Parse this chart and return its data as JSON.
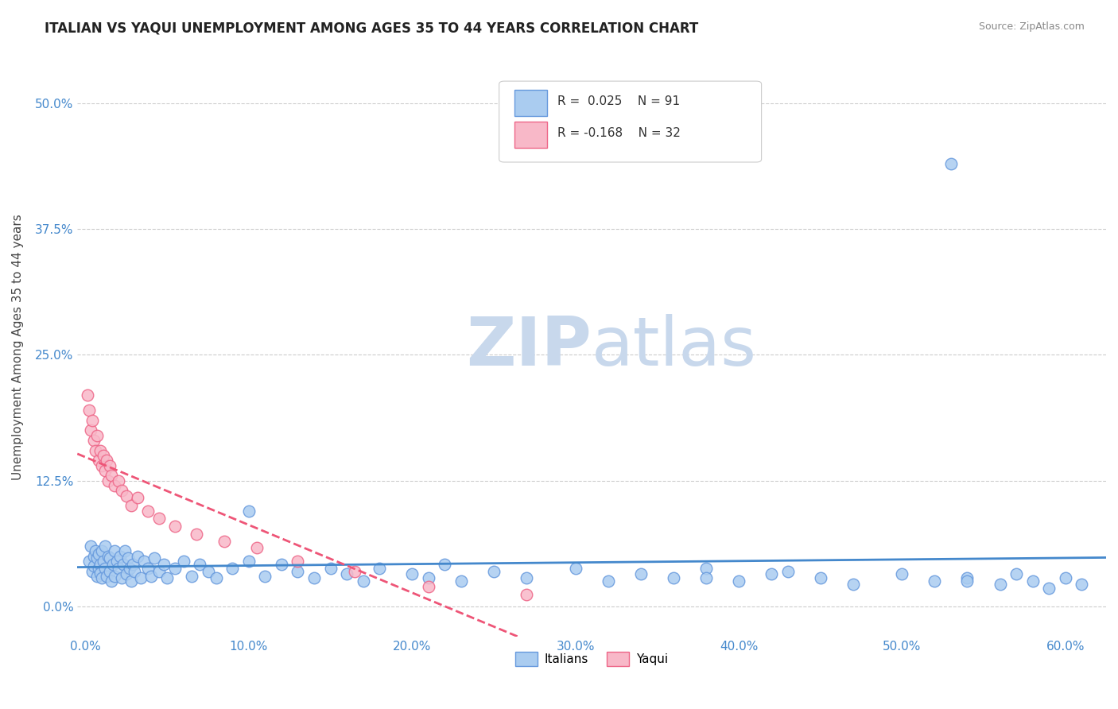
{
  "title": "ITALIAN VS YAQUI UNEMPLOYMENT AMONG AGES 35 TO 44 YEARS CORRELATION CHART",
  "source": "Source: ZipAtlas.com",
  "xlabel": "",
  "ylabel": "Unemployment Among Ages 35 to 44 years",
  "xlim": [
    -0.005,
    0.625
  ],
  "ylim": [
    -0.03,
    0.545
  ],
  "xticks": [
    0.0,
    0.1,
    0.2,
    0.3,
    0.4,
    0.5,
    0.6
  ],
  "xtick_labels": [
    "0.0%",
    "10.0%",
    "20.0%",
    "30.0%",
    "40.0%",
    "50.0%",
    "60.0%"
  ],
  "yticks": [
    0.0,
    0.125,
    0.25,
    0.375,
    0.5
  ],
  "ytick_labels": [
    "0.0%",
    "12.5%",
    "25.0%",
    "37.5%",
    "50.0%"
  ],
  "grid_color": "#cccccc",
  "background_color": "#ffffff",
  "italian_color": "#aaccf0",
  "italian_edge_color": "#6699dd",
  "yaqui_color": "#f8b8c8",
  "yaqui_edge_color": "#ee6688",
  "italian_R": 0.025,
  "italian_N": 91,
  "yaqui_R": -0.168,
  "yaqui_N": 32,
  "trend_italian_color": "#4488cc",
  "trend_yaqui_color": "#ee5577",
  "watermark_zip": "ZIP",
  "watermark_atlas": "atlas",
  "watermark_color": "#c8d8ec",
  "legend_label_italian": "Italians",
  "legend_label_yaqui": "Yaqui",
  "italian_x": [
    0.002,
    0.003,
    0.004,
    0.005,
    0.005,
    0.006,
    0.007,
    0.007,
    0.008,
    0.008,
    0.009,
    0.009,
    0.01,
    0.01,
    0.011,
    0.012,
    0.012,
    0.013,
    0.014,
    0.015,
    0.015,
    0.016,
    0.017,
    0.018,
    0.018,
    0.019,
    0.02,
    0.021,
    0.022,
    0.023,
    0.024,
    0.025,
    0.026,
    0.027,
    0.028,
    0.029,
    0.03,
    0.032,
    0.034,
    0.036,
    0.038,
    0.04,
    0.042,
    0.045,
    0.048,
    0.05,
    0.055,
    0.06,
    0.065,
    0.07,
    0.075,
    0.08,
    0.09,
    0.1,
    0.11,
    0.12,
    0.13,
    0.14,
    0.15,
    0.16,
    0.17,
    0.18,
    0.2,
    0.21,
    0.22,
    0.23,
    0.25,
    0.27,
    0.3,
    0.32,
    0.34,
    0.36,
    0.38,
    0.4,
    0.42,
    0.45,
    0.47,
    0.5,
    0.52,
    0.54,
    0.56,
    0.57,
    0.58,
    0.59,
    0.6,
    0.61,
    0.54,
    0.43,
    0.38,
    0.53,
    0.1
  ],
  "italian_y": [
    0.045,
    0.06,
    0.035,
    0.05,
    0.04,
    0.055,
    0.03,
    0.048,
    0.038,
    0.052,
    0.042,
    0.033,
    0.055,
    0.028,
    0.045,
    0.038,
    0.06,
    0.03,
    0.05,
    0.035,
    0.048,
    0.025,
    0.042,
    0.055,
    0.03,
    0.045,
    0.038,
    0.05,
    0.028,
    0.042,
    0.055,
    0.032,
    0.048,
    0.038,
    0.025,
    0.042,
    0.035,
    0.05,
    0.028,
    0.045,
    0.038,
    0.03,
    0.048,
    0.035,
    0.042,
    0.028,
    0.038,
    0.045,
    0.03,
    0.042,
    0.035,
    0.028,
    0.038,
    0.045,
    0.03,
    0.042,
    0.035,
    0.028,
    0.038,
    0.032,
    0.025,
    0.038,
    0.032,
    0.028,
    0.042,
    0.025,
    0.035,
    0.028,
    0.038,
    0.025,
    0.032,
    0.028,
    0.038,
    0.025,
    0.032,
    0.028,
    0.022,
    0.032,
    0.025,
    0.028,
    0.022,
    0.032,
    0.025,
    0.018,
    0.028,
    0.022,
    0.025,
    0.035,
    0.028,
    0.44,
    0.095
  ],
  "yaqui_x": [
    0.001,
    0.002,
    0.003,
    0.004,
    0.005,
    0.006,
    0.007,
    0.008,
    0.009,
    0.01,
    0.011,
    0.012,
    0.013,
    0.014,
    0.015,
    0.016,
    0.018,
    0.02,
    0.022,
    0.025,
    0.028,
    0.032,
    0.038,
    0.045,
    0.055,
    0.068,
    0.085,
    0.105,
    0.13,
    0.165,
    0.21,
    0.27
  ],
  "yaqui_y": [
    0.21,
    0.195,
    0.175,
    0.185,
    0.165,
    0.155,
    0.17,
    0.145,
    0.155,
    0.14,
    0.15,
    0.135,
    0.145,
    0.125,
    0.14,
    0.13,
    0.12,
    0.125,
    0.115,
    0.11,
    0.1,
    0.108,
    0.095,
    0.088,
    0.08,
    0.072,
    0.065,
    0.058,
    0.045,
    0.035,
    0.02,
    0.012
  ]
}
